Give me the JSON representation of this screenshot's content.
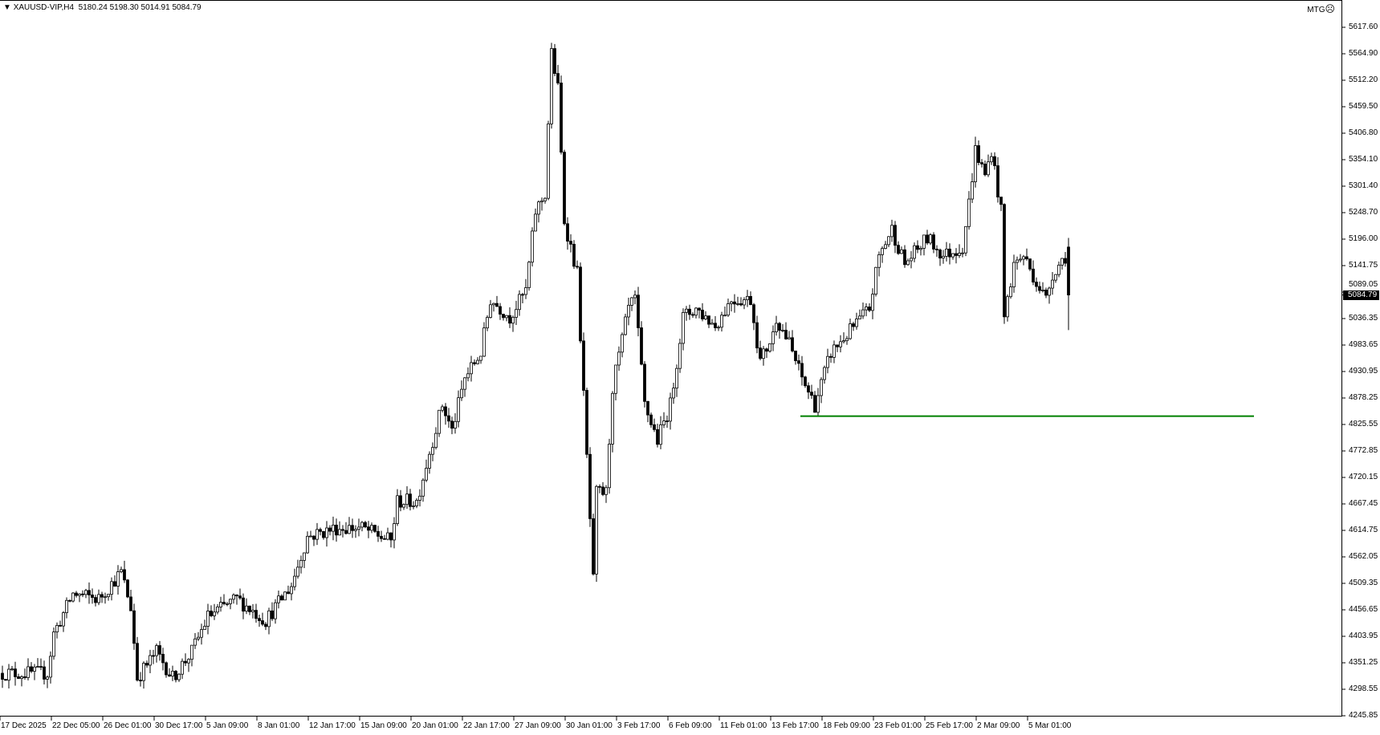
{
  "header": {
    "symbol": "XAUUSD-VIP,H4",
    "open": "5180.24",
    "high": "5198.30",
    "low": "5014.91",
    "close": "5084.79",
    "indicator": "MTG",
    "status_icon": "sad-face-icon"
  },
  "chart_data": {
    "type": "candlestick",
    "symbol": "XAUUSD-VIP",
    "timeframe": "H4",
    "ylim": [
      4245.85,
      5617.6
    ],
    "price_ticks": [
      "5617.60",
      "5564.90",
      "5512.20",
      "5459.50",
      "5406.80",
      "5354.10",
      "5301.40",
      "5248.70",
      "5196.00",
      "5141.75",
      "5089.05",
      "5036.35",
      "4983.65",
      "4930.95",
      "4878.25",
      "4825.55",
      "4772.85",
      "4720.15",
      "4667.45",
      "4614.75",
      "4562.05",
      "4509.35",
      "4456.65",
      "4403.95",
      "4351.25",
      "4298.55",
      "4245.85"
    ],
    "time_ticks": [
      "17 Dec 2025",
      "22 Dec 05:00",
      "26 Dec 01:00",
      "30 Dec 17:00",
      "5 Jan 09:00",
      "8 Jan 01:00",
      "12 Jan 17:00",
      "15 Jan 09:00",
      "20 Jan 01:00",
      "22 Jan 17:00",
      "27 Jan 09:00",
      "30 Jan 01:00",
      "3 Feb 17:00",
      "6 Feb 09:00",
      "11 Feb 01:00",
      "13 Feb 17:00",
      "18 Feb 09:00",
      "23 Feb 01:00",
      "25 Feb 17:00",
      "2 Mar 09:00",
      "5 Mar 01:00"
    ],
    "current_price": "5084.79",
    "horizontal_line": {
      "price": 4843.7,
      "color": "#008000"
    },
    "approx_close_path": [
      [
        0,
        4332
      ],
      [
        14,
        4332
      ],
      [
        16,
        4411
      ],
      [
        22,
        4490
      ],
      [
        30,
        4480
      ],
      [
        37,
        4533
      ],
      [
        40,
        4463
      ],
      [
        42,
        4323
      ],
      [
        48,
        4375
      ],
      [
        53,
        4323
      ],
      [
        59,
        4375
      ],
      [
        64,
        4445
      ],
      [
        73,
        4480
      ],
      [
        82,
        4437
      ],
      [
        90,
        4507
      ],
      [
        95,
        4604
      ],
      [
        104,
        4621
      ],
      [
        112,
        4621
      ],
      [
        121,
        4595
      ],
      [
        123,
        4674
      ],
      [
        129,
        4674
      ],
      [
        134,
        4796
      ],
      [
        137,
        4866
      ],
      [
        140,
        4814
      ],
      [
        144,
        4919
      ],
      [
        149,
        4970
      ],
      [
        152,
        5076
      ],
      [
        158,
        5041
      ],
      [
        163,
        5093
      ],
      [
        166,
        5251
      ],
      [
        169,
        5286
      ],
      [
        170,
        5427
      ],
      [
        171,
        5566
      ],
      [
        173,
        5496
      ],
      [
        175,
        5233
      ],
      [
        179,
        5128
      ],
      [
        181,
        4883
      ],
      [
        184,
        4516
      ],
      [
        185,
        4691
      ],
      [
        188,
        4691
      ],
      [
        190,
        4901
      ],
      [
        195,
        5058
      ],
      [
        197,
        5076
      ],
      [
        200,
        4866
      ],
      [
        204,
        4796
      ],
      [
        208,
        4866
      ],
      [
        212,
        5041
      ],
      [
        216,
        5058
      ],
      [
        222,
        5023
      ],
      [
        227,
        5076
      ],
      [
        233,
        5076
      ],
      [
        236,
        4953
      ],
      [
        240,
        5006
      ],
      [
        241,
        5041
      ],
      [
        245,
        4988
      ],
      [
        249,
        4919
      ],
      [
        253,
        4866
      ],
      [
        258,
        4970
      ],
      [
        263,
        5006
      ],
      [
        270,
        5058
      ],
      [
        273,
        5163
      ],
      [
        277,
        5216
      ],
      [
        281,
        5146
      ],
      [
        288,
        5198
      ],
      [
        293,
        5163
      ],
      [
        299,
        5181
      ],
      [
        301,
        5268
      ],
      [
        303,
        5374
      ],
      [
        306,
        5321
      ],
      [
        308,
        5374
      ],
      [
        311,
        5251
      ],
      [
        312,
        5041
      ],
      [
        315,
        5146
      ],
      [
        318,
        5163
      ],
      [
        322,
        5111
      ],
      [
        325,
        5076
      ],
      [
        327,
        5128
      ],
      [
        331,
        5163
      ],
      [
        332,
        5084.79
      ]
    ],
    "colors": {
      "candle": "#000000",
      "background": "#ffffff",
      "line": "#008000"
    }
  }
}
